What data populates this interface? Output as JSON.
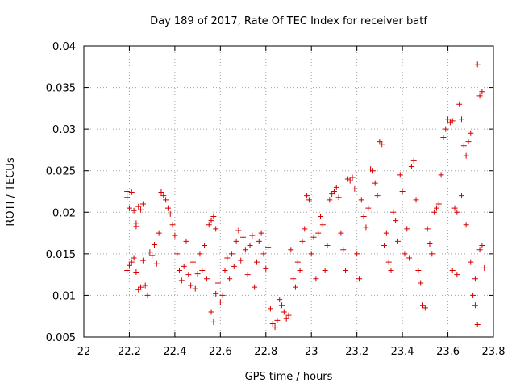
{
  "chart_data": {
    "type": "scatter",
    "title": "Day 189 of 2017, Rate Of TEC Index for receiver batf",
    "xlabel": "GPS time / hours",
    "ylabel": "ROTI / TECUs",
    "xlim": [
      22,
      23.8
    ],
    "ylim": [
      0.005,
      0.04
    ],
    "x_ticks": [
      "22",
      "22.2",
      "22.4",
      "22.6",
      "22.8",
      "23",
      "23.2",
      "23.4",
      "23.6",
      "23.8"
    ],
    "y_ticks": [
      "0.005",
      "0.01",
      "0.015",
      "0.02",
      "0.025",
      "0.03",
      "0.035",
      "0.04"
    ],
    "grid": true,
    "marker": "+",
    "color": "#d40000",
    "series": [
      {
        "points": [
          [
            22.19,
            0.0225
          ],
          [
            22.19,
            0.0218
          ],
          [
            22.2,
            0.0205
          ],
          [
            22.21,
            0.0224
          ],
          [
            22.22,
            0.0202
          ],
          [
            22.23,
            0.0187
          ],
          [
            22.23,
            0.0183
          ],
          [
            22.24,
            0.0207
          ],
          [
            22.25,
            0.0203
          ],
          [
            22.26,
            0.021
          ],
          [
            22.19,
            0.013
          ],
          [
            22.2,
            0.0136
          ],
          [
            22.21,
            0.014
          ],
          [
            22.22,
            0.0145
          ],
          [
            22.23,
            0.0128
          ],
          [
            22.24,
            0.0107
          ],
          [
            22.25,
            0.011
          ],
          [
            22.26,
            0.0142
          ],
          [
            22.27,
            0.0112
          ],
          [
            22.28,
            0.01
          ],
          [
            22.29,
            0.0152
          ],
          [
            22.3,
            0.0148
          ],
          [
            22.31,
            0.0161
          ],
          [
            22.32,
            0.0138
          ],
          [
            22.33,
            0.0175
          ],
          [
            22.34,
            0.0224
          ],
          [
            22.35,
            0.022
          ],
          [
            22.36,
            0.0215
          ],
          [
            22.37,
            0.0205
          ],
          [
            22.38,
            0.0198
          ],
          [
            22.39,
            0.0185
          ],
          [
            22.4,
            0.0172
          ],
          [
            22.41,
            0.015
          ],
          [
            22.42,
            0.013
          ],
          [
            22.43,
            0.0118
          ],
          [
            22.44,
            0.0135
          ],
          [
            22.45,
            0.0165
          ],
          [
            22.46,
            0.0125
          ],
          [
            22.47,
            0.0112
          ],
          [
            22.48,
            0.014
          ],
          [
            22.49,
            0.0108
          ],
          [
            22.5,
            0.0126
          ],
          [
            22.51,
            0.015
          ],
          [
            22.52,
            0.013
          ],
          [
            22.53,
            0.016
          ],
          [
            22.54,
            0.012
          ],
          [
            22.55,
            0.0185
          ],
          [
            22.56,
            0.019
          ],
          [
            22.57,
            0.0195
          ],
          [
            22.58,
            0.018
          ],
          [
            22.56,
            0.008
          ],
          [
            22.57,
            0.0068
          ],
          [
            22.58,
            0.0102
          ],
          [
            22.59,
            0.0115
          ],
          [
            22.6,
            0.0092
          ],
          [
            22.61,
            0.01
          ],
          [
            22.62,
            0.013
          ],
          [
            22.63,
            0.0145
          ],
          [
            22.64,
            0.012
          ],
          [
            22.65,
            0.015
          ],
          [
            22.66,
            0.0135
          ],
          [
            22.67,
            0.0165
          ],
          [
            22.68,
            0.0178
          ],
          [
            22.69,
            0.0142
          ],
          [
            22.7,
            0.017
          ],
          [
            22.71,
            0.0155
          ],
          [
            22.72,
            0.0125
          ],
          [
            22.73,
            0.016
          ],
          [
            22.74,
            0.0172
          ],
          [
            22.75,
            0.011
          ],
          [
            22.76,
            0.014
          ],
          [
            22.77,
            0.0165
          ],
          [
            22.78,
            0.0175
          ],
          [
            22.79,
            0.015
          ],
          [
            22.8,
            0.0132
          ],
          [
            22.81,
            0.0158
          ],
          [
            22.82,
            0.0084
          ],
          [
            22.83,
            0.0066
          ],
          [
            22.84,
            0.0062
          ],
          [
            22.85,
            0.007
          ],
          [
            22.86,
            0.0095
          ],
          [
            22.87,
            0.0088
          ],
          [
            22.88,
            0.008
          ],
          [
            22.89,
            0.0072
          ],
          [
            22.9,
            0.0076
          ],
          [
            22.91,
            0.0155
          ],
          [
            22.92,
            0.012
          ],
          [
            22.93,
            0.011
          ],
          [
            22.94,
            0.014
          ],
          [
            22.95,
            0.013
          ],
          [
            22.96,
            0.0165
          ],
          [
            22.97,
            0.018
          ],
          [
            22.98,
            0.022
          ],
          [
            22.99,
            0.0215
          ],
          [
            23.0,
            0.015
          ],
          [
            23.01,
            0.017
          ],
          [
            23.02,
            0.012
          ],
          [
            23.03,
            0.0175
          ],
          [
            23.04,
            0.0195
          ],
          [
            23.05,
            0.0185
          ],
          [
            23.06,
            0.013
          ],
          [
            23.07,
            0.016
          ],
          [
            23.08,
            0.0215
          ],
          [
            23.09,
            0.0222
          ],
          [
            23.1,
            0.0225
          ],
          [
            23.11,
            0.023
          ],
          [
            23.12,
            0.0218
          ],
          [
            23.13,
            0.0175
          ],
          [
            23.14,
            0.0155
          ],
          [
            23.15,
            0.013
          ],
          [
            23.16,
            0.024
          ],
          [
            23.17,
            0.0238
          ],
          [
            23.18,
            0.0242
          ],
          [
            23.19,
            0.0228
          ],
          [
            23.2,
            0.015
          ],
          [
            23.21,
            0.012
          ],
          [
            23.22,
            0.0215
          ],
          [
            23.23,
            0.0195
          ],
          [
            23.24,
            0.0182
          ],
          [
            23.25,
            0.0205
          ],
          [
            23.26,
            0.0252
          ],
          [
            23.27,
            0.025
          ],
          [
            23.28,
            0.0235
          ],
          [
            23.29,
            0.022
          ],
          [
            23.3,
            0.0285
          ],
          [
            23.31,
            0.0282
          ],
          [
            23.32,
            0.016
          ],
          [
            23.33,
            0.0175
          ],
          [
            23.34,
            0.014
          ],
          [
            23.35,
            0.013
          ],
          [
            23.36,
            0.02
          ],
          [
            23.37,
            0.019
          ],
          [
            23.38,
            0.0165
          ],
          [
            23.39,
            0.0245
          ],
          [
            23.4,
            0.0225
          ],
          [
            23.41,
            0.015
          ],
          [
            23.42,
            0.018
          ],
          [
            23.43,
            0.0145
          ],
          [
            23.44,
            0.0255
          ],
          [
            23.45,
            0.0262
          ],
          [
            23.46,
            0.0215
          ],
          [
            23.47,
            0.013
          ],
          [
            23.48,
            0.0115
          ],
          [
            23.49,
            0.0088
          ],
          [
            23.5,
            0.0085
          ],
          [
            23.51,
            0.018
          ],
          [
            23.52,
            0.0162
          ],
          [
            23.53,
            0.015
          ],
          [
            23.54,
            0.02
          ],
          [
            23.55,
            0.0205
          ],
          [
            23.56,
            0.021
          ],
          [
            23.57,
            0.0245
          ],
          [
            23.58,
            0.029
          ],
          [
            23.59,
            0.03
          ],
          [
            23.6,
            0.0312
          ],
          [
            23.61,
            0.0308
          ],
          [
            23.62,
            0.031
          ],
          [
            23.63,
            0.0205
          ],
          [
            23.64,
            0.02
          ],
          [
            23.65,
            0.033
          ],
          [
            23.66,
            0.0312
          ],
          [
            23.67,
            0.028
          ],
          [
            23.68,
            0.0268
          ],
          [
            23.69,
            0.0285
          ],
          [
            23.7,
            0.0295
          ],
          [
            23.71,
            0.01
          ],
          [
            23.72,
            0.0088
          ],
          [
            23.73,
            0.0065
          ],
          [
            23.73,
            0.0378
          ],
          [
            23.74,
            0.034
          ],
          [
            23.75,
            0.0345
          ],
          [
            23.74,
            0.0155
          ],
          [
            23.75,
            0.016
          ],
          [
            23.76,
            0.0133
          ],
          [
            23.72,
            0.012
          ],
          [
            23.7,
            0.014
          ],
          [
            23.68,
            0.0185
          ],
          [
            23.66,
            0.022
          ],
          [
            23.64,
            0.0125
          ],
          [
            23.62,
            0.013
          ]
        ]
      }
    ]
  }
}
